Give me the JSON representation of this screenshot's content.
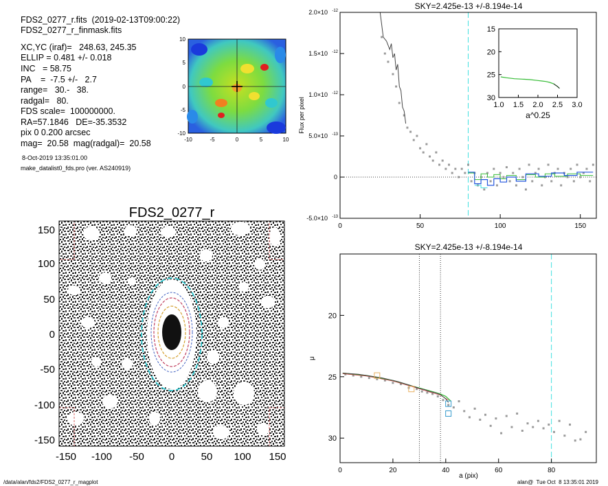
{
  "info": {
    "file_line": "FDS2_0277_r.fits  (2019-02-13T09:00:22)",
    "mask_line": "FDS2_0277_r_finmask.fits",
    "params": [
      "XC,YC (iraf)=   248.63, 245.35",
      "ELLIP = 0.481 +/- 0.018",
      "INC   = 58.75",
      "PA    =  -7.5 +/-   2.7",
      "range=   30.-   38.",
      "radgal=   80.",
      "FDS scale=  100000000.",
      "RA=57.1846   DE=-35.3532",
      "pix 0 0.200 arcsec",
      "mag=  20.58  mag(radgal)=  20.58"
    ],
    "date": "8-Oct-2019 13:35:01.00",
    "program": "make_datalist0_fds.pro (ver. AS240919)"
  },
  "footer": {
    "left": "/data/alan/fds2/FDS2_0277_r_magplot",
    "right": "alan@  Tue Oct  8 13:35:01 2019"
  },
  "image_panel": {
    "title": "FDS2_0277_r",
    "x_ticks": [
      "-150",
      "-100",
      "-50",
      "0",
      "50",
      "100",
      "150"
    ],
    "y_ticks": [
      "150",
      "100",
      "50",
      "0",
      "-50",
      "-100",
      "-150"
    ]
  },
  "residual_panel": {
    "x_ticks": [
      "-10",
      "-5",
      "0",
      "5",
      "10"
    ],
    "y_ticks": [
      "10",
      "5",
      "0",
      "-5",
      "-10"
    ]
  },
  "colors": {
    "profile_line": "#444444",
    "data_points": "#9a9a9a",
    "sky_line": "#40e0e0",
    "fit_green": "#33bb33",
    "fit_blue": "#2255dd",
    "box_orange": "#e8b060",
    "box_blue": "#3399cc"
  },
  "chart_data": [
    {
      "type": "scatter",
      "title": "SKY=2.425e-13 +/-8.194e-14",
      "xlabel": "",
      "ylabel": "Flux per pixel",
      "xlim": [
        0,
        160
      ],
      "ylim": [
        -5e-13,
        2e-12
      ],
      "x_ticks": [
        "0",
        "50",
        "100",
        "150"
      ],
      "y_ticks": [
        {
          "value": 2e-12,
          "mant": "2.0×10",
          "exp": "-12"
        },
        {
          "value": 1.5e-12,
          "mant": "1.5×10",
          "exp": "-12"
        },
        {
          "value": 1e-12,
          "mant": "1.0×10",
          "exp": "-12"
        },
        {
          "value": 5e-13,
          "mant": "5.0×10",
          "exp": "-13"
        },
        {
          "value": 0,
          "mant": "0",
          "exp": ""
        },
        {
          "value": -5e-13,
          "mant": "-5.0×10",
          "exp": "-13"
        }
      ],
      "sky_line_x": 80,
      "profile": [
        [
          25,
          2.05e-12
        ],
        [
          27,
          1.7e-12
        ],
        [
          29,
          1.65e-12
        ],
        [
          31,
          1.55e-12
        ],
        [
          32,
          1.62e-12
        ],
        [
          33,
          1.45e-12
        ],
        [
          34,
          1.5e-12
        ],
        [
          35,
          1.3e-12
        ],
        [
          36,
          1.37e-12
        ],
        [
          37,
          1.1e-12
        ],
        [
          38,
          1.05e-12
        ],
        [
          39,
          8.5e-13
        ],
        [
          40,
          8e-13
        ],
        [
          41,
          6.5e-13
        ]
      ],
      "points": [
        [
          26,
          1.7e-12
        ],
        [
          28,
          1.5e-12
        ],
        [
          30,
          1.4e-12
        ],
        [
          33,
          1.25e-12
        ],
        [
          35,
          1.1e-12
        ],
        [
          37,
          9e-13
        ],
        [
          40,
          7.5e-13
        ],
        [
          42,
          6e-13
        ],
        [
          44,
          5.5e-13
        ],
        [
          46,
          4.5e-13
        ],
        [
          48,
          5e-13
        ],
        [
          50,
          3.5e-13
        ],
        [
          52,
          3e-13
        ],
        [
          54,
          4e-13
        ],
        [
          56,
          2.5e-13
        ],
        [
          58,
          2e-13
        ],
        [
          60,
          3e-13
        ],
        [
          62,
          1.5e-13
        ],
        [
          64,
          2e-13
        ],
        [
          66,
          1e-13
        ],
        [
          68,
          1.5e-13
        ],
        [
          70,
          5e-14
        ],
        [
          72,
          1e-13
        ],
        [
          74,
          0
        ],
        [
          76,
          1e-13
        ],
        [
          78,
          5e-14
        ],
        [
          80,
          1.5e-13
        ],
        [
          82,
          -5e-14
        ],
        [
          84,
          5e-14
        ],
        [
          86,
          -1e-13
        ],
        [
          88,
          0
        ],
        [
          90,
          -1.5e-13
        ],
        [
          92,
          5e-14
        ],
        [
          94,
          -5e-14
        ],
        [
          96,
          1e-13
        ],
        [
          98,
          -1e-13
        ],
        [
          100,
          5e-14
        ],
        [
          102,
          0
        ],
        [
          104,
          1.2e-13
        ],
        [
          106,
          -5e-14
        ],
        [
          108,
          5e-14
        ],
        [
          110,
          -1e-13
        ],
        [
          112,
          1e-13
        ],
        [
          114,
          0
        ],
        [
          116,
          -1.5e-13
        ],
        [
          118,
          1.5e-13
        ],
        [
          120,
          -5e-14
        ],
        [
          122,
          5e-14
        ],
        [
          124,
          1e-13
        ],
        [
          126,
          -1e-13
        ],
        [
          128,
          0
        ],
        [
          130,
          1.5e-13
        ],
        [
          132,
          -5e-14
        ],
        [
          134,
          5e-14
        ],
        [
          136,
          1e-13
        ],
        [
          138,
          -1e-13
        ],
        [
          140,
          5e-14
        ],
        [
          142,
          0
        ],
        [
          144,
          1e-13
        ],
        [
          146,
          -5e-14
        ],
        [
          148,
          1.5e-13
        ],
        [
          150,
          0
        ],
        [
          152,
          5e-14
        ],
        [
          154,
          1e-13
        ],
        [
          156,
          -5e-14
        ],
        [
          158,
          1.5e-13
        ]
      ],
      "fit_green": [
        [
          80,
          5e-14
        ],
        [
          84,
          5e-14
        ],
        [
          84,
          -3e-14
        ],
        [
          88,
          -3e-14
        ],
        [
          88,
          4e-14
        ],
        [
          92,
          4e-14
        ],
        [
          92,
          0
        ],
        [
          96,
          0
        ],
        [
          96,
          3e-14
        ],
        [
          100,
          3e-14
        ],
        [
          100,
          -2e-14
        ],
        [
          104,
          -2e-14
        ],
        [
          104,
          2e-14
        ],
        [
          110,
          2e-14
        ],
        [
          110,
          -3e-14
        ],
        [
          116,
          -3e-14
        ],
        [
          116,
          3e-14
        ],
        [
          122,
          3e-14
        ],
        [
          122,
          0
        ],
        [
          128,
          0
        ],
        [
          128,
          4e-14
        ],
        [
          134,
          4e-14
        ],
        [
          134,
          1e-14
        ],
        [
          142,
          1e-14
        ],
        [
          142,
          4e-14
        ],
        [
          150,
          4e-14
        ],
        [
          150,
          2e-14
        ],
        [
          158,
          2e-14
        ]
      ],
      "fit_blue": [
        [
          80,
          6e-14
        ],
        [
          84,
          6e-14
        ],
        [
          84,
          -8e-14
        ],
        [
          88,
          -8e-14
        ],
        [
          88,
          -3e-14
        ],
        [
          92,
          -3e-14
        ],
        [
          92,
          -1e-13
        ],
        [
          96,
          -1e-13
        ],
        [
          96,
          -2e-14
        ],
        [
          100,
          -2e-14
        ],
        [
          100,
          -6e-14
        ],
        [
          104,
          -6e-14
        ],
        [
          104,
          0
        ],
        [
          110,
          0
        ],
        [
          110,
          -5e-14
        ],
        [
          116,
          -5e-14
        ],
        [
          116,
          4e-14
        ],
        [
          124,
          4e-14
        ],
        [
          124,
          1e-14
        ],
        [
          132,
          1e-14
        ],
        [
          132,
          5e-14
        ],
        [
          140,
          5e-14
        ],
        [
          140,
          2e-14
        ],
        [
          148,
          2e-14
        ],
        [
          148,
          6e-14
        ],
        [
          158,
          6e-14
        ]
      ],
      "fit_cyan": [
        [
          84,
          -1e-13
        ],
        [
          88,
          -1e-13
        ],
        [
          88,
          -1.3e-13
        ],
        [
          92,
          -1.3e-13
        ]
      ],
      "inset": {
        "xlabel": "a^0.25",
        "xlim": [
          1.0,
          3.0
        ],
        "ylim": [
          15,
          30
        ],
        "y_inverted": true,
        "x_ticks": [
          "1.0",
          "1.5",
          "2.0",
          "2.5",
          "3.0"
        ],
        "y_ticks": [
          "15",
          "20",
          "25",
          "30"
        ],
        "curve": [
          [
            1.05,
            25.5
          ],
          [
            1.2,
            25.7
          ],
          [
            1.4,
            25.9
          ],
          [
            1.6,
            26.0
          ],
          [
            1.8,
            26.1
          ],
          [
            2.0,
            26.3
          ],
          [
            2.1,
            26.4
          ],
          [
            2.2,
            26.5
          ],
          [
            2.3,
            26.7
          ],
          [
            2.4,
            27.0
          ],
          [
            2.45,
            27.3
          ],
          [
            2.5,
            27.6
          ],
          [
            2.55,
            28.0
          ]
        ]
      }
    },
    {
      "type": "scatter",
      "title": "SKY=2.425e-13 +/-8.194e-14",
      "xlabel": "a (pix)",
      "ylabel": "μ",
      "xlim": [
        0,
        97
      ],
      "ylim": [
        32,
        15
      ],
      "y_inverted": true,
      "x_ticks": [
        "0",
        "20",
        "40",
        "60",
        "80"
      ],
      "y_ticks": [
        "20",
        "25",
        "30"
      ],
      "range_lines_x": [
        30,
        38
      ],
      "sky_line_x": 80,
      "profile": [
        [
          1,
          24.7
        ],
        [
          4,
          24.75
        ],
        [
          7,
          24.8
        ],
        [
          10,
          24.9
        ],
        [
          13,
          25.0
        ],
        [
          16,
          25.1
        ],
        [
          19,
          25.25
        ],
        [
          22,
          25.4
        ],
        [
          25,
          25.6
        ],
        [
          28,
          25.8
        ],
        [
          30,
          25.95
        ],
        [
          32,
          26.05
        ],
        [
          34,
          26.2
        ],
        [
          36,
          26.3
        ],
        [
          38,
          26.45
        ],
        [
          40,
          26.8
        ],
        [
          41,
          27.1
        ]
      ],
      "points": [
        [
          2,
          24.8
        ],
        [
          5,
          24.9
        ],
        [
          8,
          25.0
        ],
        [
          11,
          25.1
        ],
        [
          14,
          25.2
        ],
        [
          17,
          25.3
        ],
        [
          20,
          25.5
        ],
        [
          23,
          25.6
        ],
        [
          26,
          25.9
        ],
        [
          29,
          26.0
        ],
        [
          31,
          26.2
        ],
        [
          33,
          26.3
        ],
        [
          35,
          26.4
        ],
        [
          37,
          26.6
        ],
        [
          39,
          26.9
        ],
        [
          41,
          27.3
        ],
        [
          43,
          27.5
        ],
        [
          45,
          27.0
        ],
        [
          47,
          27.8
        ],
        [
          49,
          28.3
        ],
        [
          51,
          27.6
        ],
        [
          53,
          28.5
        ],
        [
          55,
          28.1
        ],
        [
          57,
          29.0
        ],
        [
          59,
          28.4
        ],
        [
          61,
          29.6
        ],
        [
          63,
          28.2
        ],
        [
          65,
          29.1
        ],
        [
          67,
          28.0
        ],
        [
          69,
          29.4
        ],
        [
          71,
          28.8
        ],
        [
          73,
          29.1
        ],
        [
          75,
          28.6
        ],
        [
          77,
          29.2
        ],
        [
          79,
          28.9
        ],
        [
          81,
          29.5
        ],
        [
          83,
          28.6
        ],
        [
          85,
          29.8
        ],
        [
          87,
          28.9
        ],
        [
          89,
          30.2
        ],
        [
          91,
          30.1
        ],
        [
          93,
          29.5
        ]
      ],
      "fit_green": [
        [
          1,
          24.7
        ],
        [
          10,
          24.9
        ],
        [
          20,
          25.3
        ],
        [
          28,
          25.8
        ],
        [
          34,
          26.15
        ],
        [
          38,
          26.4
        ],
        [
          40,
          26.6
        ],
        [
          42,
          27.0
        ]
      ],
      "fit_red": [
        [
          1,
          24.75
        ],
        [
          10,
          24.95
        ],
        [
          20,
          25.35
        ],
        [
          28,
          25.85
        ],
        [
          34,
          26.25
        ],
        [
          38,
          26.5
        ],
        [
          41,
          26.9
        ]
      ],
      "boxes_orange": [
        [
          14,
          24.9
        ],
        [
          27,
          26.0
        ]
      ],
      "boxes_blue": [
        [
          41,
          28.0
        ],
        [
          41,
          27.2
        ]
      ]
    }
  ]
}
